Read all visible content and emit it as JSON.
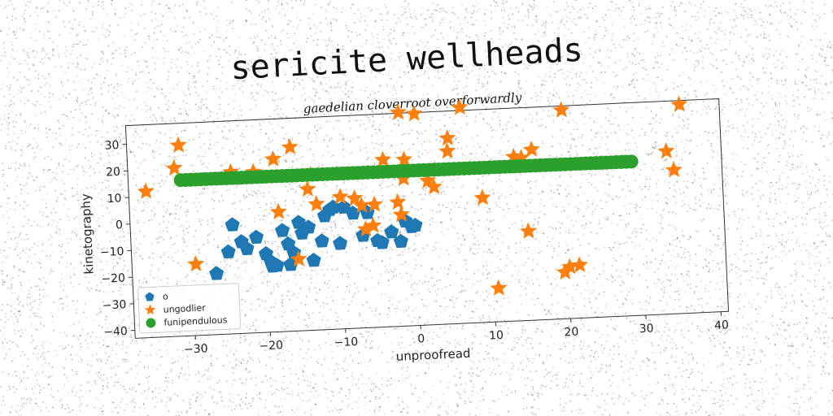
{
  "chart_data": {
    "type": "scatter",
    "title": "sericite wellheads",
    "subtitle": "gaedelian cloverroot overforwardly",
    "xlabel": "unproofread",
    "ylabel": "kinetography",
    "xlim": [
      -38,
      41
    ],
    "ylim": [
      -43,
      37
    ],
    "xticks": [
      -30,
      -20,
      -10,
      0,
      10,
      20,
      30,
      40
    ],
    "yticks": [
      -40,
      -30,
      -20,
      -10,
      0,
      10,
      20,
      30
    ],
    "grid": false,
    "legend_position": "lower-left",
    "series": [
      {
        "name": "o",
        "marker": "pentagon",
        "color": "#1f77b4",
        "x": [
          -24.4,
          -25.1,
          -23.3,
          -22.6,
          -26.8,
          -21.3,
          -20.1,
          -19.5,
          -18.7,
          -17.8,
          -17.1,
          -16.4,
          -15.6,
          -15.2,
          -14.3,
          -13.8,
          -12.6,
          -11.4,
          -10.2,
          -9.5,
          -8.3,
          -7.1,
          -6.4,
          -5.2,
          -4.6,
          -3.3,
          -2.1,
          -1.4,
          -0.6,
          -0.1,
          -12.1,
          -10.9,
          -19.3,
          -16.9
        ],
        "y": [
          -2.1,
          -12.2,
          -8.6,
          -11.3,
          -20.1,
          -7.2,
          -13.5,
          -16.6,
          -18.1,
          -5.1,
          -10.2,
          -13.6,
          -2.3,
          -6.4,
          -4.3,
          -16.8,
          -9.7,
          1.9,
          -10.9,
          2.6,
          0.2,
          -8.3,
          0.2,
          -10.5,
          -11.3,
          -7.5,
          -11.2,
          -3.6,
          -5.8,
          -5.4,
          -0.3,
          2.8,
          -18.3,
          -18.0
        ]
      },
      {
        "name": "ungodlier",
        "marker": "star",
        "color": "#ff7f0e",
        "x": [
          -35.7,
          -31.8,
          -31.1,
          -29.5,
          -24.3,
          -21.3,
          -18.6,
          -18.2,
          -16.3,
          -15.8,
          -14.2,
          -13.7,
          -13.1,
          -9.9,
          -8.0,
          -7.1,
          -6.7,
          -5.7,
          -5.4,
          -4.0,
          -2.3,
          -1.9,
          -1.7,
          -1.4,
          -1.2,
          0.4,
          1.8,
          2.6,
          4.7,
          4.6,
          6.5,
          9.0,
          10.6,
          13.4,
          14.4,
          14.9,
          15.8,
          19.5,
          20.0,
          20.2,
          21.5,
          33.7,
          34.6,
          35.7
        ],
        "y": [
          11.9,
          20.2,
          28.7,
          -16.2,
          17.8,
          17.4,
          21.9,
          2.0,
          26.1,
          -16.1,
          10.0,
          15.4,
          4.3,
          6.6,
          5.8,
          3.0,
          -6.0,
          -4.8,
          3.1,
          19.8,
          3.6,
          -1.1,
          37.3,
          12.4,
          19.5,
          36.5,
          11.2,
          8.7,
          26.8,
          21.9,
          38.1,
          3.8,
          -30.4,
          18.7,
          18.1,
          -9.5,
          21.1,
          -25.5,
          35.4,
          -23.6,
          -23.1,
          18.2,
          11.0,
          35.5
        ]
      },
      {
        "name": "funipendulous",
        "marker": "circle",
        "color": "#2ca02c",
        "x_start": -31.0,
        "x_end": 29.0,
        "count": 90,
        "y_start": 15.6,
        "y_end": 14.9
      }
    ]
  }
}
